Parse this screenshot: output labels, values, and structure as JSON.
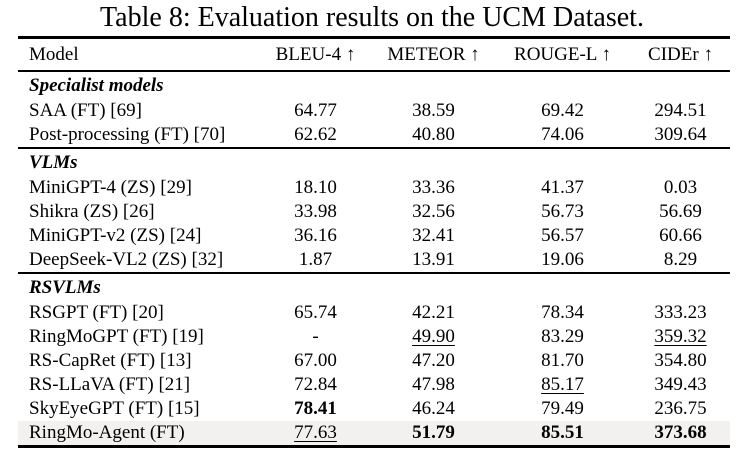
{
  "title": "Table 8: Evaluation results on the UCM Dataset.",
  "table": {
    "columns": [
      "Model",
      "BLEU-4 ↑",
      "METEOR ↑",
      "ROUGE-L ↑",
      "CIDEr ↑"
    ],
    "sections": [
      {
        "label": "Specialist models",
        "rows": [
          {
            "model": "SAA (FT) [69]",
            "cells": [
              {
                "text": "64.77"
              },
              {
                "text": "38.59"
              },
              {
                "text": "69.42"
              },
              {
                "text": "294.51"
              }
            ]
          },
          {
            "model": "Post-processing (FT) [70]",
            "cells": [
              {
                "text": "62.62"
              },
              {
                "text": "40.80"
              },
              {
                "text": "74.06"
              },
              {
                "text": "309.64"
              }
            ]
          }
        ]
      },
      {
        "label": "VLMs",
        "rows": [
          {
            "model": "MiniGPT-4 (ZS) [29]",
            "cells": [
              {
                "text": "18.10"
              },
              {
                "text": "33.36"
              },
              {
                "text": "41.37"
              },
              {
                "text": "0.03"
              }
            ]
          },
          {
            "model": "Shikra (ZS) [26]",
            "cells": [
              {
                "text": "33.98"
              },
              {
                "text": "32.56"
              },
              {
                "text": "56.73"
              },
              {
                "text": "56.69"
              }
            ]
          },
          {
            "model": "MiniGPT-v2 (ZS) [24]",
            "cells": [
              {
                "text": "36.16"
              },
              {
                "text": "32.41"
              },
              {
                "text": "56.57"
              },
              {
                "text": "60.66"
              }
            ]
          },
          {
            "model": "DeepSeek-VL2 (ZS) [32]",
            "cells": [
              {
                "text": "1.87"
              },
              {
                "text": "13.91"
              },
              {
                "text": "19.06"
              },
              {
                "text": "8.29"
              }
            ]
          }
        ]
      },
      {
        "label": "RSVLMs",
        "rows": [
          {
            "model": "RSGPT (FT) [20]",
            "cells": [
              {
                "text": "65.74"
              },
              {
                "text": "42.21"
              },
              {
                "text": "78.34"
              },
              {
                "text": "333.23"
              }
            ]
          },
          {
            "model": "RingMoGPT (FT) [19]",
            "cells": [
              {
                "text": "-"
              },
              {
                "text": "49.90",
                "style": "underline"
              },
              {
                "text": "83.29"
              },
              {
                "text": "359.32",
                "style": "underline"
              }
            ]
          },
          {
            "model": "RS-CapRet (FT) [13]",
            "cells": [
              {
                "text": "67.00"
              },
              {
                "text": "47.20"
              },
              {
                "text": "81.70"
              },
              {
                "text": "354.80"
              }
            ]
          },
          {
            "model": "RS-LLaVA (FT) [21]",
            "cells": [
              {
                "text": "72.84"
              },
              {
                "text": "47.98"
              },
              {
                "text": "85.17",
                "style": "underline"
              },
              {
                "text": "349.43"
              }
            ]
          },
          {
            "model": "SkyEyeGPT (FT) [15]",
            "cells": [
              {
                "text": "78.41",
                "style": "bold"
              },
              {
                "text": "46.24"
              },
              {
                "text": "79.49"
              },
              {
                "text": "236.75"
              }
            ]
          },
          {
            "model": "RingMo-Agent (FT)",
            "highlight": true,
            "cells": [
              {
                "text": "77.63",
                "style": "underline"
              },
              {
                "text": "51.79",
                "style": "bold"
              },
              {
                "text": "85.51",
                "style": "bold"
              },
              {
                "text": "373.68",
                "style": "bold"
              }
            ]
          }
        ]
      }
    ]
  },
  "colors": {
    "text": "#000000",
    "background": "#ffffff",
    "rule": "#000000",
    "highlight_row": "#f2f1ef"
  }
}
